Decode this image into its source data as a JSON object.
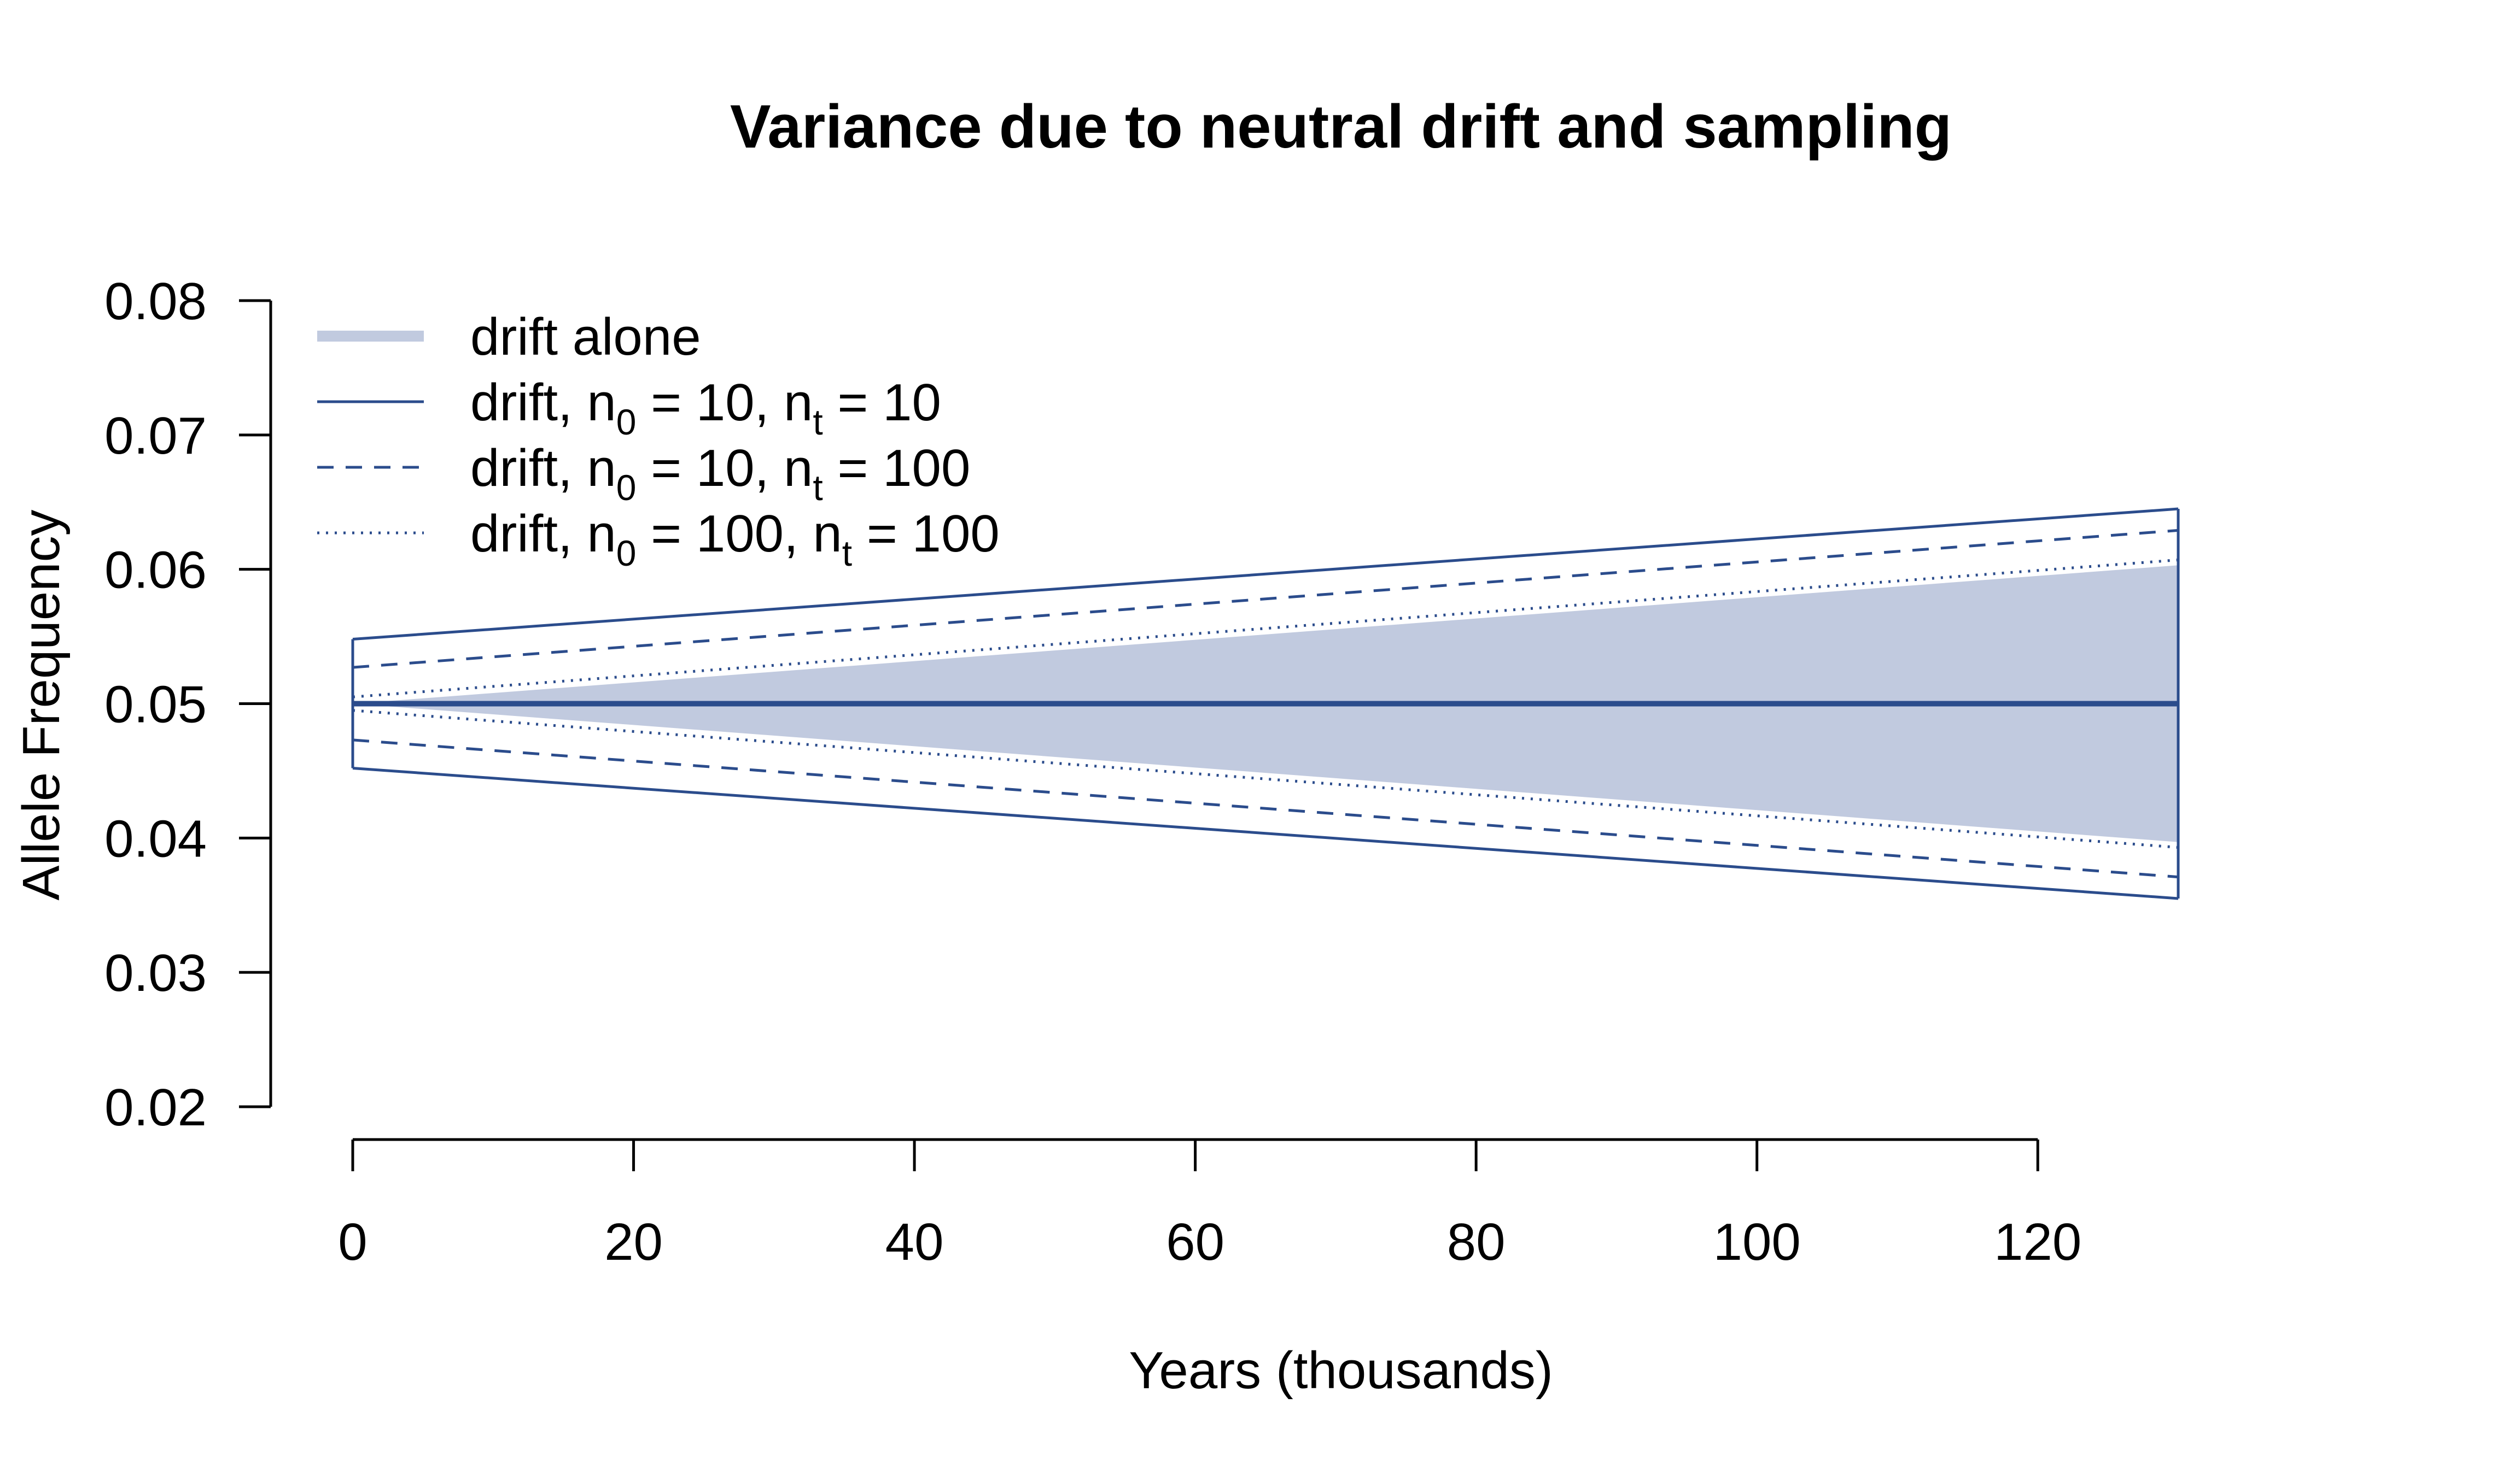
{
  "colors": {
    "line": "#2B4C8C",
    "band": "#C1CADF",
    "axis": "#000000"
  },
  "chart_data": {
    "type": "line",
    "title": "Variance due to neutral drift and sampling",
    "xlabel": "Years (thousands)",
    "ylabel": "Allele Frequency",
    "xlim": [
      0,
      130
    ],
    "ylim": [
      0.02,
      0.08
    ],
    "x_ticks": [
      0,
      20,
      40,
      60,
      80,
      100,
      120
    ],
    "x_tick_labels": [
      "0",
      "20",
      "40",
      "60",
      "80",
      "100",
      "120"
    ],
    "y_ticks": [
      0.02,
      0.03,
      0.04,
      0.05,
      0.06,
      0.07,
      0.08
    ],
    "y_tick_labels": [
      "0.02",
      "0.03",
      "0.04",
      "0.05",
      "0.06",
      "0.07",
      "0.08"
    ],
    "grid": false,
    "legend_position": "top-left",
    "mean": {
      "x": [
        0,
        130
      ],
      "y": [
        0.05,
        0.05
      ]
    },
    "series": [
      {
        "id": "drift-alone",
        "style": "band",
        "legend_parts": [
          "drift alone"
        ],
        "x": [
          0,
          130
        ],
        "upper": [
          0.05,
          0.0603
        ],
        "lower": [
          0.05,
          0.0397
        ]
      },
      {
        "id": "n10-n10",
        "style": "solid",
        "legend_parts": [
          "drift, n",
          "0",
          " = 10, n",
          "t",
          " = 10"
        ],
        "x": [
          0,
          130
        ],
        "upper": [
          0.0548,
          0.0645
        ],
        "lower": [
          0.0452,
          0.0355
        ]
      },
      {
        "id": "n10-n100",
        "style": "dashed",
        "legend_parts": [
          "drift, n",
          "0",
          " = 10, n",
          "t",
          " = 100"
        ],
        "x": [
          0,
          130
        ],
        "upper": [
          0.0527,
          0.0629
        ],
        "lower": [
          0.0473,
          0.0371
        ]
      },
      {
        "id": "n100-n100",
        "style": "dotted",
        "legend_parts": [
          "drift, n",
          "0",
          " = 100, n",
          "t",
          " = 100"
        ],
        "x": [
          0,
          130
        ],
        "upper": [
          0.0505,
          0.0607
        ],
        "lower": [
          0.0495,
          0.0393
        ]
      }
    ]
  }
}
